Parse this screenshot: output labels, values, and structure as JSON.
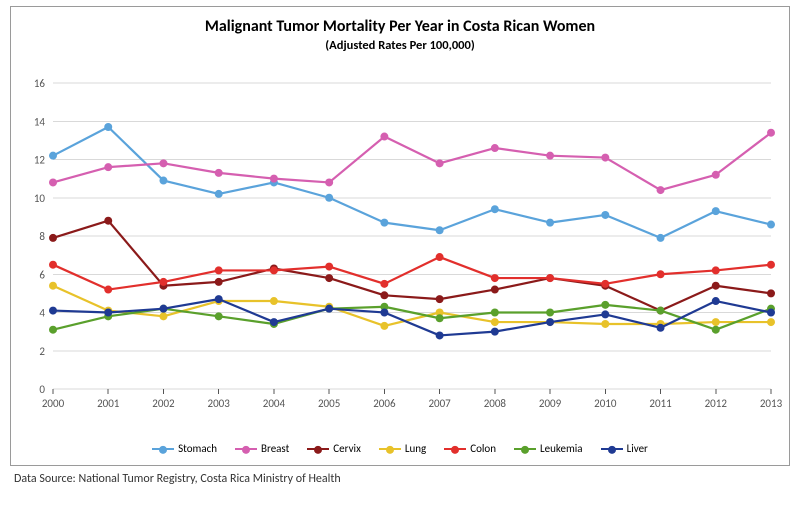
{
  "chart": {
    "type": "line",
    "title": "Malignant Tumor Mortality Per Year in Costa Rican Women",
    "subtitle": "(Adjusted Rates Per 100,000)",
    "title_fontsize": 16,
    "subtitle_fontsize": 12.5,
    "background_color": "#ffffff",
    "border_color": "#9a9a9a",
    "grid_color": "#d9d9d9",
    "axis_tick_color": "#555555",
    "axis_label_fontsize": 11,
    "legend_fontsize": 11,
    "line_width": 2.2,
    "marker_size": 4,
    "x": {
      "categories": [
        "2000",
        "2001",
        "2002",
        "2003",
        "2004",
        "2005",
        "2006",
        "2007",
        "2008",
        "2009",
        "2010",
        "2011",
        "2012",
        "2013"
      ]
    },
    "y": {
      "min": 0,
      "max": 16,
      "step": 2
    },
    "series": [
      {
        "key": "stomach",
        "label": "Stomach",
        "color": "#5aa3db",
        "values": [
          12.2,
          13.7,
          10.9,
          10.2,
          10.8,
          10.0,
          8.7,
          8.3,
          9.4,
          8.7,
          9.1,
          7.9,
          9.3,
          8.6
        ]
      },
      {
        "key": "breast",
        "label": "Breast",
        "color": "#d55fb0",
        "values": [
          10.8,
          11.6,
          11.8,
          11.3,
          11.0,
          10.8,
          13.2,
          11.8,
          12.6,
          12.2,
          12.1,
          10.4,
          11.2,
          13.4
        ]
      },
      {
        "key": "cervix",
        "label": "Cervix",
        "color": "#8b1a1a",
        "values": [
          7.9,
          8.8,
          5.4,
          5.6,
          6.3,
          5.8,
          4.9,
          4.7,
          5.2,
          5.8,
          5.4,
          4.1,
          5.4,
          5.0
        ]
      },
      {
        "key": "lung",
        "label": "Lung",
        "color": "#e8c22a",
        "values": [
          5.4,
          4.1,
          3.8,
          4.6,
          4.6,
          4.3,
          3.3,
          4.0,
          3.5,
          3.5,
          3.4,
          3.4,
          3.5,
          3.5
        ]
      },
      {
        "key": "colon",
        "label": "Colon",
        "color": "#e22f2c",
        "values": [
          6.5,
          5.2,
          5.6,
          6.2,
          6.2,
          6.4,
          5.5,
          6.9,
          5.8,
          5.8,
          5.5,
          6.0,
          6.2,
          6.5
        ]
      },
      {
        "key": "leukemia",
        "label": "Leukemia",
        "color": "#5aa02c",
        "values": [
          3.1,
          3.8,
          4.2,
          3.8,
          3.4,
          4.2,
          4.3,
          3.7,
          4.0,
          4.0,
          4.4,
          4.1,
          3.1,
          4.2
        ]
      },
      {
        "key": "liver",
        "label": "Liver",
        "color": "#1f3a93",
        "values": [
          4.1,
          4.0,
          4.2,
          4.7,
          3.5,
          4.2,
          4.0,
          2.8,
          3.0,
          3.5,
          3.9,
          3.2,
          4.6,
          4.0
        ]
      }
    ]
  },
  "source_label": "Data Source: National Tumor Registry, Costa Rica Ministry of Health"
}
